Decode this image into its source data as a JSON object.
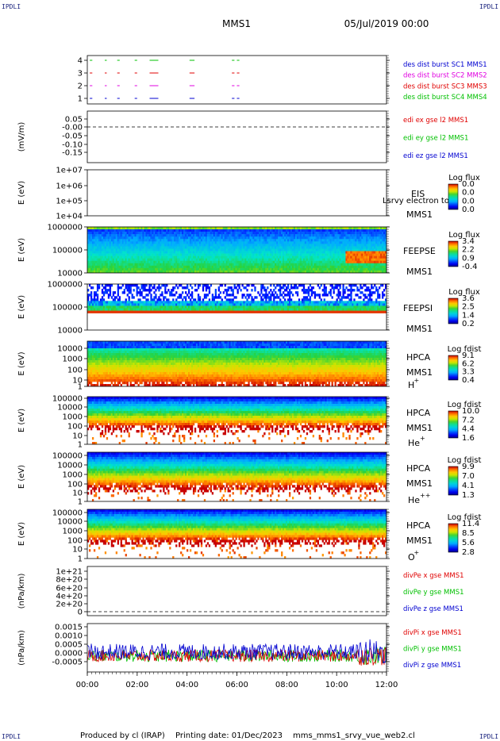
{
  "header": {
    "title": "MMS1",
    "date": "05/Jul/2019 00:00",
    "corner": "IPDLI"
  },
  "footer": {
    "produced": "Produced by cl (IRAP)",
    "printing": "Printing date: 01/Dec/2023",
    "file": "mms_mms1_srvy_vue_web2.cl"
  },
  "time_axis": {
    "ticks": [
      "00:00",
      "02:00",
      "04:00",
      "06:00",
      "08:00",
      "10:00",
      "12:00"
    ]
  },
  "colors": {
    "red": "#e00000",
    "green": "#00c000",
    "blue": "#0000d0",
    "magenta": "#e000e0",
    "label_blue": "#000080"
  },
  "panels": [
    {
      "id": "burst",
      "ylabel": "",
      "yticks": [
        "4",
        "3",
        "2",
        "1"
      ],
      "legend": [
        {
          "text": "des dist burst SC1 MMS1",
          "color": "#0000d0"
        },
        {
          "text": "des dist burst SC2 MMS2",
          "color": "#e000e0"
        },
        {
          "text": "des dist burst SC3 MMS3",
          "color": "#e00000"
        },
        {
          "text": "des dist burst SC4 MMS4",
          "color": "#00c000"
        }
      ],
      "burst_intervals_hours": [
        [
          0.1,
          0.2
        ],
        [
          0.7,
          0.78
        ],
        [
          1.2,
          1.3
        ],
        [
          1.9,
          2.0
        ],
        [
          2.5,
          2.85
        ],
        [
          4.1,
          4.3
        ],
        [
          5.8,
          5.9
        ],
        [
          6.0,
          6.1
        ]
      ]
    },
    {
      "id": "edi",
      "ylabel": "(mV/m)",
      "yticks": [
        "0.05",
        "-0.00",
        "-0.05",
        "-0.10",
        "-0.15"
      ],
      "legend": [
        {
          "text": "edi ex gse l2 MMS1",
          "color": "#e00000"
        },
        {
          "text": "edi ey gse l2 MMS1",
          "color": "#00c000"
        },
        {
          "text": "edi ez gse l2 MMS1",
          "color": "#0000d0"
        }
      ]
    },
    {
      "id": "eis",
      "ylabel": "E (eV)",
      "yticks": [
        "1e+07",
        "1e+06",
        "1e+05",
        "1e+04"
      ],
      "instrument": "EIS",
      "overlay": "Lsrvy electron to",
      "sc": "MMS1",
      "cbar_title": "Log flux",
      "cbar_ticks": [
        "0.0",
        "0.0",
        "0.0",
        "0.0"
      ]
    },
    {
      "id": "feepse",
      "ylabel": "E (eV)",
      "yticks": [
        "1000000",
        "100000",
        "10000"
      ],
      "instrument": "FEEPSE",
      "sc": "MMS1",
      "cbar_title": "Log flux",
      "cbar_ticks": [
        "3.4",
        "2.2",
        "0.9",
        "-0.4"
      ]
    },
    {
      "id": "feepsi",
      "ylabel": "E (eV)",
      "yticks": [
        "1000000",
        "100000",
        "10000"
      ],
      "instrument": "FEEPSI",
      "sc": "MMS1",
      "cbar_title": "Log flux",
      "cbar_ticks": [
        "3.6",
        "2.5",
        "1.4",
        "0.2"
      ]
    },
    {
      "id": "hpca_h",
      "ylabel": "E (eV)",
      "yticks": [
        "10000",
        "1000",
        "100",
        "10",
        "1"
      ],
      "instrument": "HPCA",
      "sc": "MMS1",
      "species": "H",
      "species_sup": "+",
      "cbar_title": "Log fdist",
      "cbar_ticks": [
        "9.1",
        "6.2",
        "3.3",
        "0.4"
      ]
    },
    {
      "id": "hpca_he",
      "ylabel": "E (eV)",
      "yticks": [
        "100000",
        "10000",
        "1000",
        "100",
        "10",
        "1"
      ],
      "instrument": "HPCA",
      "sc": "MMS1",
      "species": "He",
      "species_sup": "+",
      "cbar_title": "Log fdist",
      "cbar_ticks": [
        "10.0",
        "7.2",
        "4.4",
        "1.6"
      ]
    },
    {
      "id": "hpca_hepp",
      "ylabel": "E (eV)",
      "yticks": [
        "100000",
        "10000",
        "1000",
        "100",
        "10",
        "1"
      ],
      "instrument": "HPCA",
      "sc": "MMS1",
      "species": "He",
      "species_sup": "++",
      "cbar_title": "Log fdist",
      "cbar_ticks": [
        "9.9",
        "7.0",
        "4.1",
        "1.3"
      ]
    },
    {
      "id": "hpca_o",
      "ylabel": "E (eV)",
      "yticks": [
        "100000",
        "10000",
        "1000",
        "100",
        "10",
        "1"
      ],
      "instrument": "HPCA",
      "sc": "MMS1",
      "species": "O",
      "species_sup": "+",
      "cbar_title": "Log fdist",
      "cbar_ticks": [
        "11.4",
        "8.5",
        "5.6",
        "2.8"
      ]
    },
    {
      "id": "divpe",
      "ylabel": "(nPa/km)",
      "yticks": [
        "1e+21",
        "8e+20",
        "6e+20",
        "4e+20",
        "2e+20",
        "0"
      ],
      "legend": [
        {
          "text": "divPe x gse MMS1",
          "color": "#e00000"
        },
        {
          "text": "divPe y gse MMS1",
          "color": "#00c000"
        },
        {
          "text": "divPe z gse MMS1",
          "color": "#0000d0"
        }
      ]
    },
    {
      "id": "divpi",
      "ylabel": "(nPa/km)",
      "yticks": [
        "0.0015",
        "0.0010",
        "0.0005",
        "0.0000",
        "-0.0005"
      ],
      "legend": [
        {
          "text": "divPi x gse MMS1",
          "color": "#e00000"
        },
        {
          "text": "divPi y gse MMS1",
          "color": "#00c000"
        },
        {
          "text": "divPi z gse MMS1",
          "color": "#0000d0"
        }
      ]
    }
  ],
  "chart_data": {
    "type": "heatmap",
    "x_range_hours": [
      0,
      12
    ],
    "x_ticks": [
      "00:00",
      "02:00",
      "04:00",
      "06:00",
      "08:00",
      "10:00",
      "12:00"
    ],
    "divpi_ylim": [
      -0.0008,
      0.0016
    ],
    "divpi_series": [
      {
        "name": "divPi x gse MMS1",
        "mean": 0.0,
        "spread": 0.0003
      },
      {
        "name": "divPi y gse MMS1",
        "mean": 0.0,
        "spread": 0.0003
      },
      {
        "name": "divPi z gse MMS1",
        "mean": 0.0002,
        "spread": 0.0004
      }
    ]
  }
}
